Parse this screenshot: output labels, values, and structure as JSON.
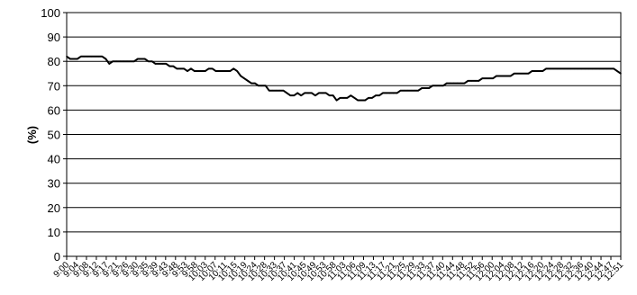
{
  "chart_data": {
    "type": "line",
    "ylabel": "(%)",
    "xlabel": "",
    "ylim": [
      0,
      100
    ],
    "yticks": [
      0,
      10,
      20,
      30,
      40,
      50,
      60,
      70,
      80,
      90,
      100
    ],
    "grid": true,
    "legend": "none",
    "colors": {
      "line": "#000000",
      "grid": "#000000",
      "background": "#ffffff"
    },
    "x_tick_labels": [
      "9:00",
      "9:04",
      "9:08",
      "9:12",
      "9:17",
      "9:21",
      "9:26",
      "9:30",
      "9:35",
      "9:39",
      "9:43",
      "9:48",
      "9:53",
      "9:58",
      "10:03",
      "10:07",
      "10:11",
      "10:15",
      "10:19",
      "10:24",
      "10:28",
      "10:33",
      "10:37",
      "10:41",
      "10:45",
      "10:49",
      "10:53",
      "10:58",
      "11:03",
      "11:06",
      "11:09",
      "11:13",
      "11:17",
      "11:21",
      "11:25",
      "11:29",
      "11:33",
      "11:37",
      "11:40",
      "11:44",
      "11:48",
      "11:52",
      "11:56",
      "12:00",
      "12:04",
      "12:08",
      "12:12",
      "12:16",
      "12:20",
      "12:24",
      "12:28",
      "12:32",
      "12:36",
      "12:40",
      "12:44",
      "12:47",
      "12:51"
    ],
    "series": [
      {
        "values": [
          82,
          81,
          81,
          81,
          82,
          82,
          82,
          82,
          82,
          82,
          82,
          81,
          79,
          80,
          80,
          80,
          80,
          80,
          80,
          80,
          81,
          81,
          81,
          80,
          80,
          79,
          79,
          79,
          79,
          78,
          78,
          77,
          77,
          77,
          76,
          77,
          76,
          76,
          76,
          76,
          77,
          77,
          76,
          76,
          76,
          76,
          76,
          77,
          76,
          74,
          73,
          72,
          71,
          71,
          70,
          70,
          70,
          68,
          68,
          68,
          68,
          68,
          67,
          66,
          66,
          67,
          66,
          67,
          67,
          67,
          66,
          67,
          67,
          67,
          66,
          66,
          64,
          65,
          65,
          65,
          66,
          65,
          64,
          64,
          64,
          65,
          65,
          66,
          66,
          67,
          67,
          67,
          67,
          67,
          68,
          68,
          68,
          68,
          68,
          68,
          69,
          69,
          69,
          70,
          70,
          70,
          70,
          71,
          71,
          71,
          71,
          71,
          71,
          72,
          72,
          72,
          72,
          73,
          73,
          73,
          73,
          74,
          74,
          74,
          74,
          74,
          75,
          75,
          75,
          75,
          75,
          76,
          76,
          76,
          76,
          77,
          77,
          77,
          77,
          77,
          77,
          77,
          77,
          77,
          77,
          77,
          77,
          77,
          77,
          77,
          77,
          77,
          77,
          77,
          77,
          76,
          75
        ]
      }
    ]
  }
}
